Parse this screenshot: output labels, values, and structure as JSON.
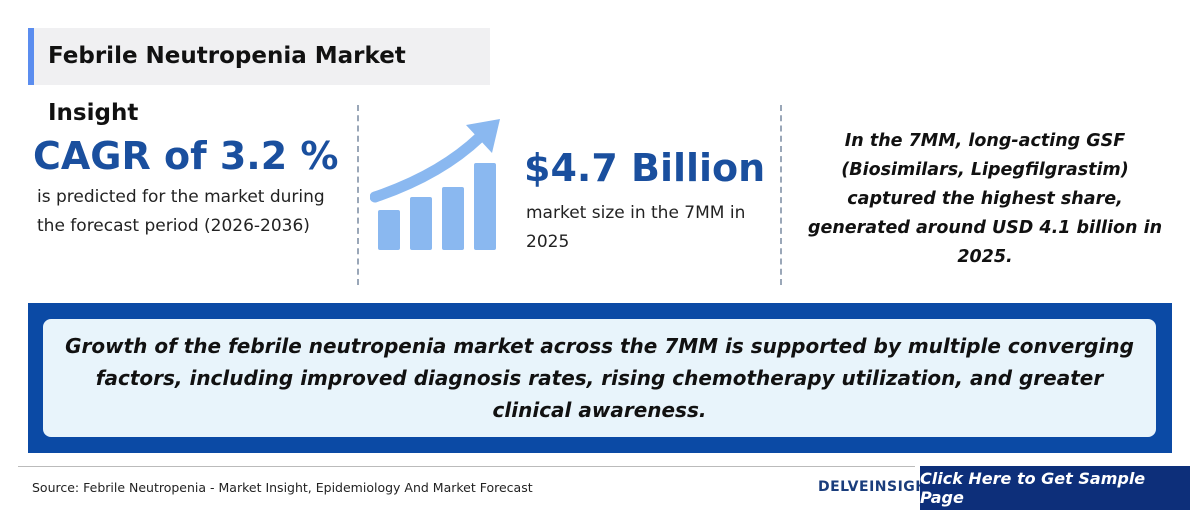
{
  "header": {
    "title": "Febrile Neutropenia Market Insight"
  },
  "stats": [
    {
      "headline": "CAGR of 3.2 %",
      "text": "is predicted for the market during the forecast period (2026-2036)"
    },
    {
      "headline": "$4.7 Billion",
      "text": "market size in the 7MM in 2025"
    },
    {
      "text": "In the 7MM, long-acting GSF (Biosimilars, Lipegfilgrastim) captured the highest share, generated around USD 4.1 billion in 2025."
    }
  ],
  "highlight": "Growth of the febrile neutropenia market across the 7MM is supported by multiple converging factors, including improved diagnosis rates, rising chemotherapy utilization, and greater clinical awareness.",
  "footer": {
    "source": "Source: Febrile Neutropenia - Market Insight, Epidemiology And Market Forecast",
    "logo": "DELVEINSIGHT",
    "button": "Click Here to Get Sample Page"
  }
}
